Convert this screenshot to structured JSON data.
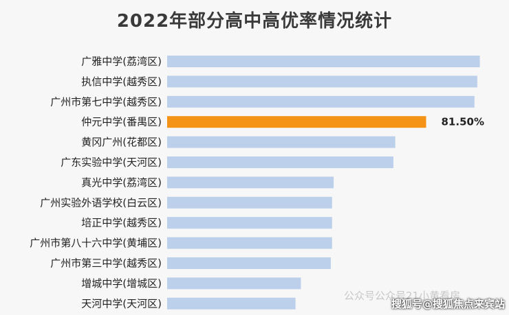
{
  "chart_data": {
    "type": "bar",
    "orientation": "horizontal",
    "title": "2022年部分高中高优率情况统计",
    "categories": [
      "广雅中学(荔湾区)",
      "执信中学(越秀区)",
      "广州市第七中学(越秀区)",
      "仲元中学(番禺区)",
      "黄冈广州(花都区)",
      "广东实验中学(天河区)",
      "真光中学(荔湾区)",
      "广州实验外语学校(白云区)",
      "培正中学(越秀区)",
      "广州市第八十六中学(黄埔区)",
      "广州市第三中学(越秀区)",
      "增城中学(增城区)",
      "天河中学(天河区)"
    ],
    "values": [
      98.4,
      97.6,
      96.7,
      81.5,
      71.8,
      71.2,
      52.4,
      51.9,
      51.9,
      51.9,
      51.5,
      42.1,
      40.4
    ],
    "highlight_index": 3,
    "highlight_label": "81.50%",
    "xlim": [
      0,
      100
    ],
    "bar_color": "#bcd0ec",
    "highlight_color": "#f59316",
    "grid": false,
    "legend": "none"
  },
  "watermark": "公众号公众号21小黄看房",
  "credit": "搜狐号@搜狐焦点来宾站"
}
